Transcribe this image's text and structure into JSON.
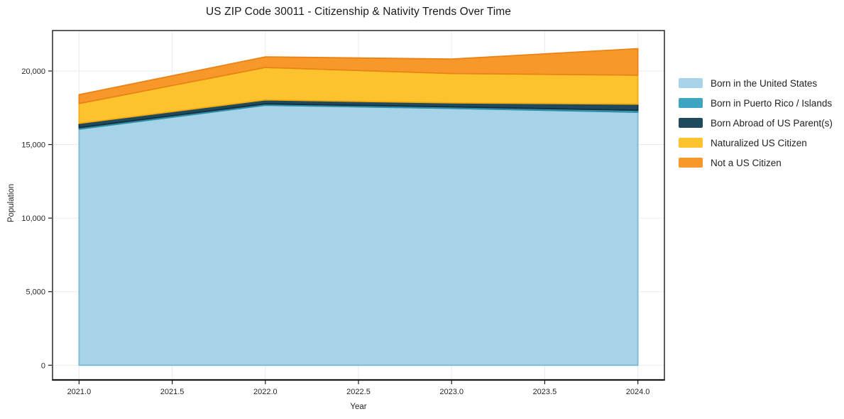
{
  "chart_data": {
    "type": "area",
    "stacked": true,
    "title": "US ZIP Code 30011 - Citizenship & Nativity Trends Over Time",
    "xlabel": "Year",
    "ylabel": "Population",
    "x": [
      2021,
      2022,
      2023,
      2024
    ],
    "series": [
      {
        "name": "Born in the United States",
        "values": [
          16050,
          17670,
          17460,
          17200
        ],
        "color": "#a6d3e8",
        "edge": "#7fb8d4"
      },
      {
        "name": "Born in Puerto Rico / Islands",
        "values": [
          100,
          100,
          100,
          130
        ],
        "color": "#3fa4bf",
        "edge": "#2d8ca6"
      },
      {
        "name": "Born Abroad of US Parent(s)",
        "values": [
          290,
          270,
          270,
          420
        ],
        "color": "#1f4a5e",
        "edge": "#132f3e"
      },
      {
        "name": "Naturalized US Citizen",
        "values": [
          1350,
          2200,
          2000,
          1970
        ],
        "color": "#fcc32f",
        "edge": "#f3ab10"
      },
      {
        "name": "Not a US Citizen",
        "values": [
          600,
          720,
          980,
          1800
        ],
        "color": "#f8982b",
        "edge": "#e98414"
      }
    ],
    "x_ticks": {
      "values": [
        2021.0,
        2021.5,
        2022.0,
        2022.5,
        2023.0,
        2023.5,
        2024.0
      ],
      "labels": [
        "2021.0",
        "2021.5",
        "2022.0",
        "2022.5",
        "2023.0",
        "2023.5",
        "2024.0"
      ]
    },
    "y_ticks": {
      "values": [
        0,
        5000,
        10000,
        15000,
        20000
      ],
      "labels": [
        "0",
        "5,000",
        "10,000",
        "15,000",
        "20,000"
      ]
    },
    "xlim": [
      2020.8575,
      2024.1425
    ],
    "ylim": [
      -1000,
      22750
    ],
    "grid": true,
    "grid_color": "#ebebee",
    "legend_position": "right",
    "spine_color": "#1a1a1a",
    "tick_label_color": "#262626"
  }
}
